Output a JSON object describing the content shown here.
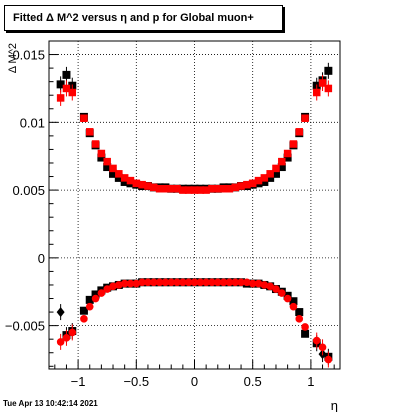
{
  "title": "Fitted Δ M^2 versus η and p for Global muon+",
  "timestamp": "Tue Apr 13 10:42:14 2021",
  "chart_data": {
    "type": "scatter",
    "title": "Fitted Δ M^2 versus η and p for Global muon+",
    "xlabel": "η",
    "ylabel": "Δ M^2",
    "xlim": [
      -1.25,
      1.25
    ],
    "ylim": [
      -0.0082,
      0.016
    ],
    "xticks": [
      -1,
      -0.5,
      0,
      0.5,
      1
    ],
    "xtick_labels": [
      "−1",
      "−0.5",
      "0",
      "0.5",
      "1"
    ],
    "yticks": [
      -0.005,
      0,
      0.005,
      0.01,
      0.015
    ],
    "ytick_labels": [
      "−0.005",
      "0",
      "0.005",
      "0.01",
      "0.015"
    ],
    "grid": true,
    "x": [
      -1.15,
      -1.1,
      -1.05,
      -0.95,
      -0.9,
      -0.85,
      -0.8,
      -0.75,
      -0.7,
      -0.65,
      -0.6,
      -0.55,
      -0.5,
      -0.45,
      -0.4,
      -0.35,
      -0.3,
      -0.25,
      -0.2,
      -0.15,
      -0.1,
      -0.05,
      0.0,
      0.05,
      0.1,
      0.15,
      0.2,
      0.25,
      0.3,
      0.35,
      0.4,
      0.45,
      0.5,
      0.55,
      0.6,
      0.65,
      0.7,
      0.75,
      0.8,
      0.85,
      0.9,
      0.95,
      1.05,
      1.1,
      1.15
    ],
    "series": [
      {
        "color": "#000000",
        "upper": [
          0.0128,
          0.0135,
          0.0127,
          0.0104,
          0.0092,
          0.0083,
          0.0074,
          0.0067,
          0.0062,
          0.0059,
          0.0056,
          0.0055,
          0.0054,
          0.0053,
          0.0053,
          0.0052,
          0.0052,
          0.0052,
          0.0051,
          0.0051,
          0.0051,
          0.0051,
          0.0051,
          0.0051,
          0.0051,
          0.0051,
          0.0051,
          0.0052,
          0.0052,
          0.0052,
          0.0053,
          0.0053,
          0.0054,
          0.0055,
          0.0056,
          0.0059,
          0.0062,
          0.0067,
          0.0074,
          0.0083,
          0.0092,
          0.0104,
          0.0127,
          0.0131,
          0.0138
        ],
        "lower": [
          -0.004,
          -0.0057,
          -0.0054,
          -0.0039,
          -0.0031,
          -0.0027,
          -0.0024,
          -0.0022,
          -0.0021,
          -0.002,
          -0.0019,
          -0.0019,
          -0.0019,
          -0.0018,
          -0.0018,
          -0.0018,
          -0.0018,
          -0.0018,
          -0.0018,
          -0.0018,
          -0.0018,
          -0.0018,
          -0.0018,
          -0.0018,
          -0.0018,
          -0.0018,
          -0.0018,
          -0.0018,
          -0.0018,
          -0.0018,
          -0.0018,
          -0.0019,
          -0.0019,
          -0.0019,
          -0.002,
          -0.0021,
          -0.0023,
          -0.0025,
          -0.0028,
          -0.0032,
          -0.004,
          -0.0056,
          -0.0063,
          -0.0071,
          -0.0073
        ]
      },
      {
        "color": "#ff0000",
        "upper": [
          0.0118,
          0.0125,
          0.0122,
          0.0103,
          0.0093,
          0.0084,
          0.0077,
          0.0071,
          0.0066,
          0.0062,
          0.0059,
          0.0057,
          0.0055,
          0.0054,
          0.0053,
          0.0052,
          0.0051,
          0.0051,
          0.0051,
          0.0051,
          0.005,
          0.005,
          0.005,
          0.005,
          0.005,
          0.0051,
          0.0051,
          0.0051,
          0.0051,
          0.0052,
          0.0053,
          0.0054,
          0.0055,
          0.0057,
          0.0059,
          0.0062,
          0.0066,
          0.0071,
          0.0077,
          0.0084,
          0.0093,
          0.0103,
          0.0122,
          0.0129,
          0.0125
        ],
        "lower": [
          -0.0062,
          -0.0059,
          -0.0055,
          -0.0045,
          -0.0036,
          -0.003,
          -0.0026,
          -0.0023,
          -0.0021,
          -0.002,
          -0.0019,
          -0.0019,
          -0.0019,
          -0.0018,
          -0.0018,
          -0.0018,
          -0.0018,
          -0.0018,
          -0.0018,
          -0.0018,
          -0.0018,
          -0.0018,
          -0.0018,
          -0.0018,
          -0.0018,
          -0.0018,
          -0.0018,
          -0.0018,
          -0.0018,
          -0.0018,
          -0.0018,
          -0.0018,
          -0.0019,
          -0.0019,
          -0.002,
          -0.0021,
          -0.0023,
          -0.0026,
          -0.003,
          -0.0036,
          -0.0045,
          -0.0051,
          -0.0061,
          -0.0066,
          -0.0075
        ]
      }
    ]
  }
}
